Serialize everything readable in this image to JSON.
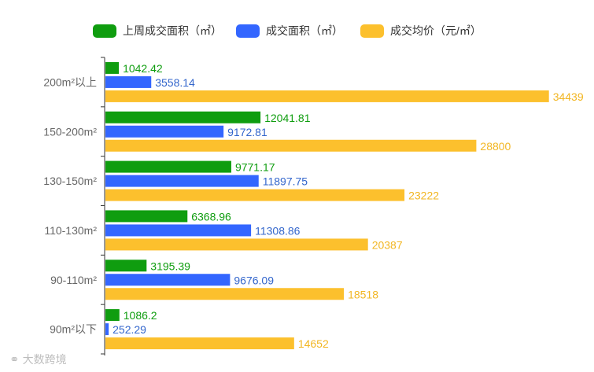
{
  "legend": {
    "items": [
      {
        "label": "上周成交面积（㎡）",
        "color": "#0f9d0f"
      },
      {
        "label": "成交面积（㎡）",
        "color": "#3366ff"
      },
      {
        "label": "成交均价（元/㎡）",
        "color": "#fcc02d"
      }
    ]
  },
  "watermark": {
    "text": "大数跨境",
    "icon": "logo-icon"
  },
  "chart_data": {
    "type": "bar",
    "orientation": "horizontal",
    "categories": [
      "200m²以上",
      "150-200m²",
      "130-150m²",
      "110-130m²",
      "90-110m²",
      "90m²以下"
    ],
    "series": [
      {
        "name": "上周成交面积（㎡）",
        "color": "#0f9d0f",
        "label_color": "#0f9d0f",
        "values": [
          1042.42,
          12041.81,
          9771.17,
          6368.96,
          3195.39,
          1086.2
        ],
        "labels": [
          "1042.42",
          "12041.81",
          "9771.17",
          "6368.96",
          "3195.39",
          "1086.2"
        ]
      },
      {
        "name": "成交面积（㎡）",
        "color": "#3366ff",
        "label_color": "#3366cc",
        "values": [
          3558.14,
          9172.81,
          11897.75,
          11308.86,
          9676.09,
          252.29
        ],
        "labels": [
          "3558.14",
          "9172.81",
          "11897.75",
          "11308.86",
          "9676.09",
          "252.29"
        ]
      },
      {
        "name": "成交均价（元/㎡）",
        "color": "#fcc02d",
        "label_color": "#f2b622",
        "values": [
          34439,
          28800,
          23222,
          20387,
          18518,
          14652
        ],
        "labels": [
          "34439",
          "28800",
          "23222",
          "20387",
          "18518",
          "14652"
        ]
      }
    ],
    "xlim": [
      0,
      38000
    ],
    "grid": false,
    "legend_position": "top-center"
  }
}
